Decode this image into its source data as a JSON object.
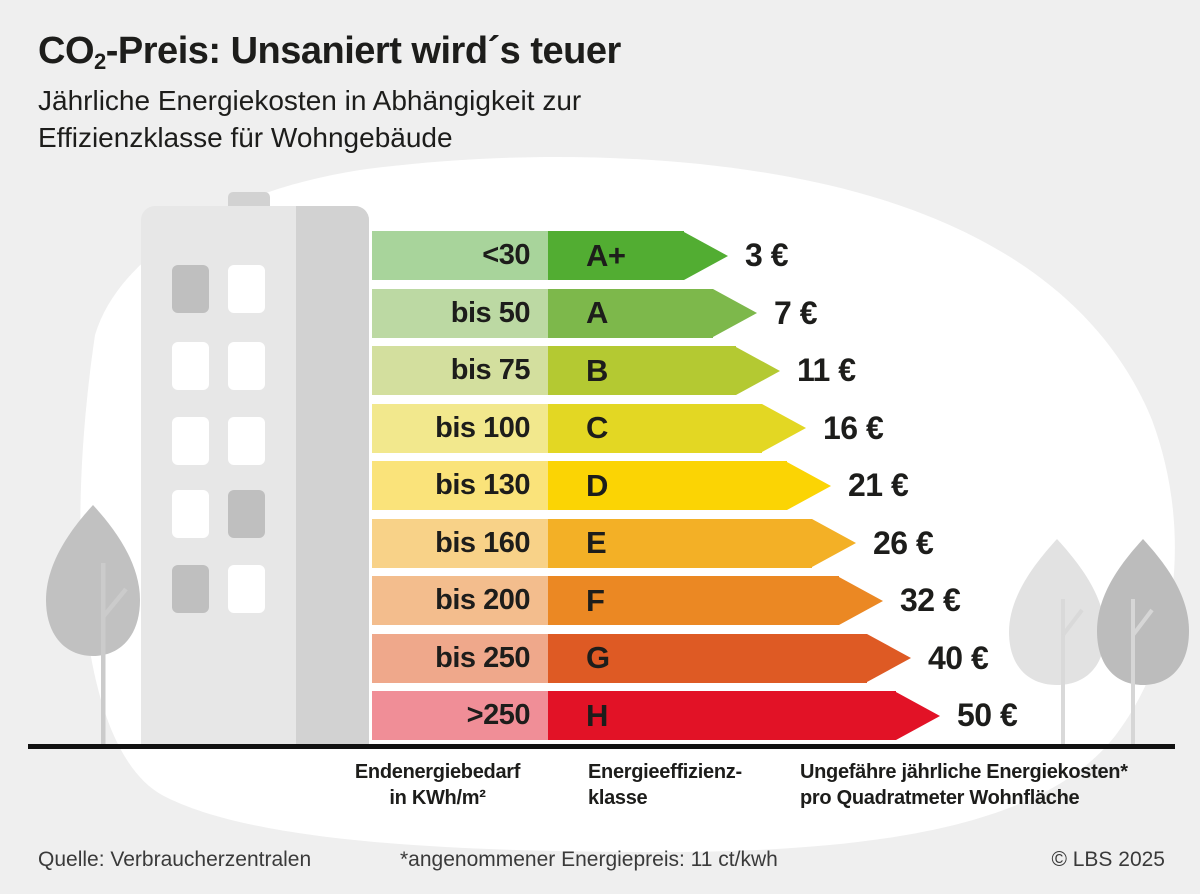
{
  "header": {
    "title_co": "CO",
    "title_sub": "2",
    "title_rest": "-Preis: Unsaniert wird´s teuer",
    "subtitle_line1": "Jährliche Energiekosten in Abhängigkeit zur",
    "subtitle_line2": "Effizienzklasse für Wohngebäude"
  },
  "chart_data": {
    "type": "bar",
    "title": "CO2-Preis: Unsaniert wird´s teuer",
    "subtitle": "Jährliche Energiekosten in Abhängigkeit zur Effizienzklasse für Wohngebäude",
    "categories": [
      "A+",
      "A",
      "B",
      "C",
      "D",
      "E",
      "F",
      "G",
      "H"
    ],
    "demand_kwh_m2": [
      "<30",
      "bis 50",
      "bis 75",
      "bis 100",
      "bis 130",
      "bis 160",
      "bis 200",
      "bis 250",
      ">250"
    ],
    "values_eur": [
      3,
      7,
      11,
      16,
      21,
      26,
      32,
      40,
      50
    ],
    "unit": "€ pro m² Wohnfläche und Jahr",
    "legend_position": "bottom",
    "rows": [
      {
        "demand": "<30",
        "class": "A+",
        "cost": "3 €",
        "value": 3,
        "color": "#52ad32",
        "tint": "#a8d49b",
        "arrow_len": 180
      },
      {
        "demand": "bis 50",
        "class": "A",
        "cost": "7 €",
        "value": 7,
        "color": "#7db84b",
        "tint": "#bcd9a3",
        "arrow_len": 209
      },
      {
        "demand": "bis 75",
        "class": "B",
        "cost": "11 €",
        "value": 11,
        "color": "#b4c932",
        "tint": "#d3df9e",
        "arrow_len": 232
      },
      {
        "demand": "bis 100",
        "class": "C",
        "cost": "16 €",
        "value": 16,
        "color": "#e3d723",
        "tint": "#f2e88d",
        "arrow_len": 258
      },
      {
        "demand": "bis 130",
        "class": "D",
        "cost": "21 €",
        "value": 21,
        "color": "#fbd404",
        "tint": "#fae37a",
        "arrow_len": 283
      },
      {
        "demand": "bis 160",
        "class": "E",
        "cost": "26 €",
        "value": 26,
        "color": "#f3b026",
        "tint": "#f8d288",
        "arrow_len": 308
      },
      {
        "demand": "bis 200",
        "class": "F",
        "cost": "32 €",
        "value": 32,
        "color": "#eb8823",
        "tint": "#f3bd8d",
        "arrow_len": 335
      },
      {
        "demand": "bis 250",
        "class": "G",
        "cost": "40 €",
        "value": 40,
        "color": "#de5a24",
        "tint": "#efa88b",
        "arrow_len": 363
      },
      {
        "demand": ">250",
        "class": "H",
        "cost": "50 €",
        "value": 50,
        "color": "#e21226",
        "tint": "#f08e97",
        "arrow_len": 392
      }
    ]
  },
  "legend": {
    "col1_line1": "Endenergiebedarf",
    "col1_line2": "in KWh/m²",
    "col2_line1": "Energieeffizienz-",
    "col2_line2": "klasse",
    "col3_line1": "Ungefähre jährliche Energiekosten*",
    "col3_line2": "pro Quadratmeter Wohnfläche"
  },
  "footer": {
    "source": "Quelle: Verbraucherzentralen",
    "note": "*angenommener Energiepreis: 11 ct/kwh",
    "copyright": "© LBS 2025"
  },
  "colors": {
    "page_background": "#efefef",
    "blob": "#ffffff",
    "ground_line": "#111111",
    "text": "#1d1d1b",
    "building_body": "#e7e7e7",
    "building_strip": "#d2d2d2",
    "window_gray": "#bfbfbf",
    "tree_gray_dark": "#bcbcbc",
    "tree_gray_light": "#e2e2e2"
  }
}
